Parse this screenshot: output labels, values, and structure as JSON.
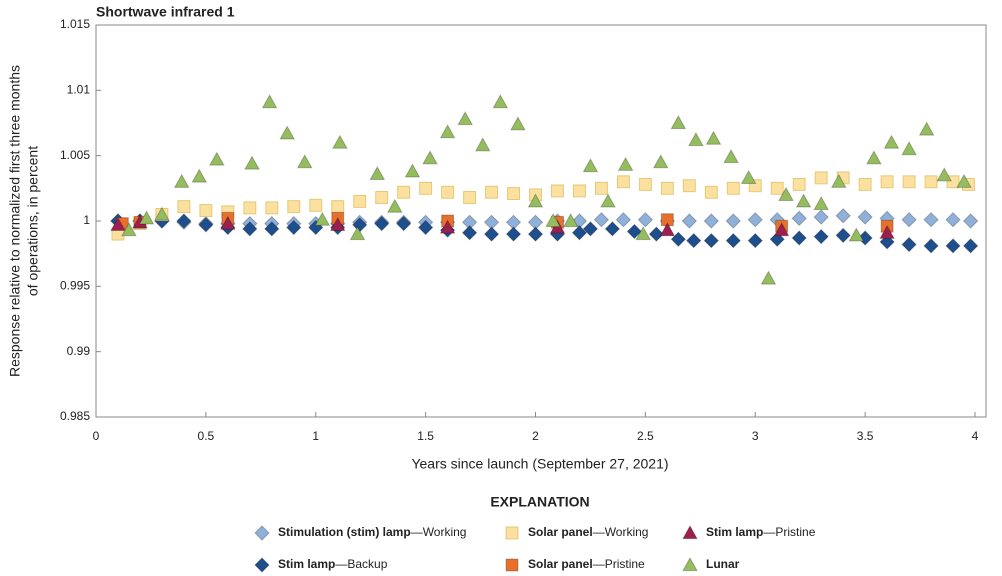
{
  "chart_data": {
    "type": "scatter",
    "title": "Shortwave infrared 1",
    "xlabel": "Years since launch (September 27, 2021)",
    "ylabel": [
      "Response relative to normalized first three months",
      "of operations, in percent"
    ],
    "legend_title": "EXPLANATION",
    "xlim": [
      0,
      4.05
    ],
    "ylim": [
      0.985,
      1.015
    ],
    "xticks": [
      0,
      0.5,
      1,
      1.5,
      2,
      2.5,
      3,
      3.5,
      4
    ],
    "yticks": [
      0.985,
      0.99,
      0.995,
      1,
      1.005,
      1.01,
      1.015
    ],
    "series": [
      {
        "name": "Stimulation (stim) lamp—Working",
        "color": "#8fb0d9",
        "marker": "diamond",
        "x": [
          0.1,
          0.2,
          0.3,
          0.4,
          0.5,
          0.6,
          0.7,
          0.8,
          0.9,
          1.0,
          1.1,
          1.2,
          1.3,
          1.4,
          1.5,
          1.6,
          1.7,
          1.8,
          1.9,
          2.0,
          2.1,
          2.2,
          2.3,
          2.4,
          2.5,
          2.6,
          2.7,
          2.8,
          2.9,
          3.0,
          3.1,
          3.2,
          3.3,
          3.4,
          3.5,
          3.6,
          3.7,
          3.8,
          3.9,
          3.98
        ],
        "values": [
          1.0,
          1.0,
          1.0,
          0.9999,
          0.9998,
          0.9998,
          0.9998,
          0.9998,
          0.9998,
          0.9998,
          0.9998,
          0.9999,
          0.9999,
          0.9999,
          0.9999,
          0.9999,
          0.9999,
          0.9999,
          0.9999,
          0.9999,
          1.0,
          1.0,
          1.0001,
          1.0001,
          1.0001,
          1.0,
          1.0,
          1.0,
          1.0,
          1.0001,
          1.0001,
          1.0002,
          1.0003,
          1.0004,
          1.0003,
          1.0002,
          1.0001,
          1.0001,
          1.0001,
          1.0
        ]
      },
      {
        "name": "Stim lamp—Backup",
        "color": "#1f4e8c",
        "marker": "diamond",
        "x": [
          0.1,
          0.2,
          0.3,
          0.4,
          0.5,
          0.6,
          0.7,
          0.8,
          0.9,
          1.0,
          1.1,
          1.2,
          1.3,
          1.4,
          1.5,
          1.6,
          1.7,
          1.8,
          1.9,
          2.0,
          2.1,
          2.2,
          2.25,
          2.35,
          2.45,
          2.55,
          2.65,
          2.72,
          2.8,
          2.9,
          3.0,
          3.1,
          3.2,
          3.3,
          3.4,
          3.5,
          3.6,
          3.7,
          3.8,
          3.9,
          3.98
        ],
        "values": [
          1.0,
          1.0,
          1.0,
          1.0,
          0.9997,
          0.9995,
          0.9994,
          0.9994,
          0.9995,
          0.9995,
          0.9995,
          0.9997,
          0.9998,
          0.9998,
          0.9995,
          0.9993,
          0.9991,
          0.999,
          0.999,
          0.999,
          0.999,
          0.9991,
          0.9994,
          0.9994,
          0.9992,
          0.999,
          0.9986,
          0.9985,
          0.9985,
          0.9985,
          0.9985,
          0.9986,
          0.9987,
          0.9988,
          0.9989,
          0.9987,
          0.9984,
          0.9982,
          0.9981,
          0.9981,
          0.9981
        ]
      },
      {
        "name": "Solar panel—Working",
        "color": "#fbe0a0",
        "marker": "square",
        "x": [
          0.1,
          0.2,
          0.3,
          0.4,
          0.5,
          0.6,
          0.7,
          0.8,
          0.9,
          1.0,
          1.1,
          1.2,
          1.3,
          1.4,
          1.5,
          1.6,
          1.7,
          1.8,
          1.9,
          2.0,
          2.1,
          2.2,
          2.3,
          2.4,
          2.5,
          2.6,
          2.7,
          2.8,
          2.9,
          3.0,
          3.1,
          3.2,
          3.3,
          3.4,
          3.5,
          3.6,
          3.7,
          3.8,
          3.9,
          3.97
        ],
        "values": [
          0.999,
          0.9998,
          1.0005,
          1.0011,
          1.0008,
          1.0007,
          1.001,
          1.001,
          1.0011,
          1.0012,
          1.0011,
          1.0015,
          1.0018,
          1.0022,
          1.0025,
          1.0022,
          1.0018,
          1.0022,
          1.0021,
          1.002,
          1.0023,
          1.0023,
          1.0025,
          1.003,
          1.0028,
          1.0025,
          1.0027,
          1.0022,
          1.0025,
          1.0027,
          1.0025,
          1.0028,
          1.0033,
          1.0033,
          1.0028,
          1.003,
          1.003,
          1.003,
          1.003,
          1.0028
        ]
      },
      {
        "name": "Solar panel—Pristine",
        "color": "#e8702a",
        "marker": "square",
        "x": [
          0.12,
          0.2,
          0.6,
          1.1,
          1.6,
          2.1,
          2.6,
          3.12,
          3.6
        ],
        "values": [
          0.9998,
          0.9999,
          1.0002,
          1.0002,
          1.0,
          0.9999,
          1.0001,
          0.9996,
          0.9996
        ]
      },
      {
        "name": "Stim lamp—Pristine",
        "color": "#9c1f4f",
        "marker": "triangle",
        "x": [
          0.1,
          0.2,
          0.6,
          1.1,
          1.6,
          2.1,
          2.6,
          3.12,
          3.6
        ],
        "values": [
          0.9997,
          0.9999,
          0.9998,
          0.9997,
          0.9995,
          0.9995,
          0.9993,
          0.9993,
          0.9991
        ]
      },
      {
        "name": "Lunar",
        "color": "#94bd5e",
        "marker": "triangle",
        "x": [
          0.15,
          0.23,
          0.3,
          0.39,
          0.47,
          0.55,
          0.71,
          0.79,
          0.87,
          0.95,
          1.03,
          1.11,
          1.19,
          1.28,
          1.36,
          1.44,
          1.52,
          1.6,
          1.68,
          1.76,
          1.84,
          1.92,
          2.0,
          2.08,
          2.16,
          2.25,
          2.33,
          2.41,
          2.49,
          2.57,
          2.65,
          2.73,
          2.81,
          2.89,
          2.97,
          3.06,
          3.14,
          3.22,
          3.3,
          3.38,
          3.46,
          3.54,
          3.62,
          3.7,
          3.78,
          3.86,
          3.95
        ],
        "values": [
          0.9993,
          1.0002,
          1.0005,
          1.003,
          1.0034,
          1.0047,
          1.0044,
          1.0091,
          1.0067,
          1.0045,
          1.0001,
          1.006,
          0.999,
          1.0036,
          1.0011,
          1.0038,
          1.0048,
          1.0068,
          1.0078,
          1.0058,
          1.0091,
          1.0074,
          1.0015,
          1.0,
          1.0,
          1.0042,
          1.0015,
          1.0043,
          0.999,
          1.0045,
          1.0075,
          1.0062,
          1.0063,
          1.0049,
          1.0033,
          0.9956,
          1.002,
          1.0015,
          1.0013,
          1.003,
          0.9989,
          1.0048,
          1.006,
          1.0055,
          1.007,
          1.0035,
          1.003
        ]
      }
    ]
  }
}
